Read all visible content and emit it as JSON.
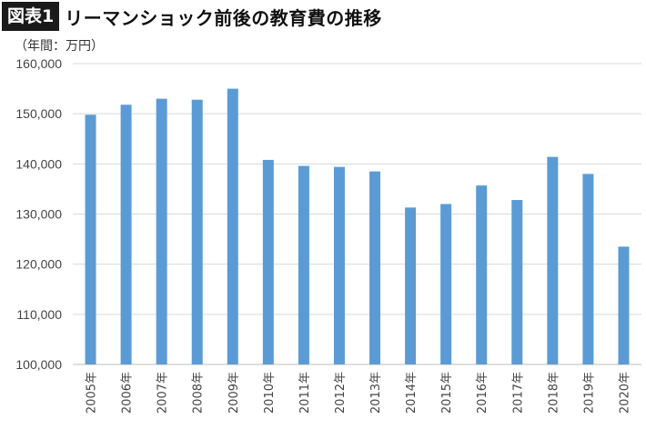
{
  "header": {
    "badge": "図表1",
    "title": "リーマンショック前後の教育費の推移"
  },
  "unit_label": "（年間：万円）",
  "chart_data": {
    "type": "bar",
    "title": "リーマンショック前後の教育費の推移",
    "xlabel": "",
    "ylabel": "（年間：万円）",
    "categories": [
      "2005年",
      "2006年",
      "2007年",
      "2008年",
      "2009年",
      "2010年",
      "2011年",
      "2012年",
      "2013年",
      "2014年",
      "2015年",
      "2016年",
      "2017年",
      "2018年",
      "2019年",
      "2020年"
    ],
    "values": [
      149800,
      151800,
      153000,
      152800,
      155000,
      140800,
      139600,
      139400,
      138500,
      131300,
      132000,
      135700,
      132800,
      141400,
      138000,
      123500
    ],
    "ylim": [
      100000,
      160000
    ],
    "yticks": [
      100000,
      110000,
      120000,
      130000,
      140000,
      150000,
      160000
    ],
    "ytick_labels": [
      "100,000",
      "110,000",
      "120,000",
      "130,000",
      "140,000",
      "150,000",
      "160,000"
    ],
    "grid": true,
    "bar_color": "#5b9bd5",
    "grid_color": "#d9d9d9"
  }
}
